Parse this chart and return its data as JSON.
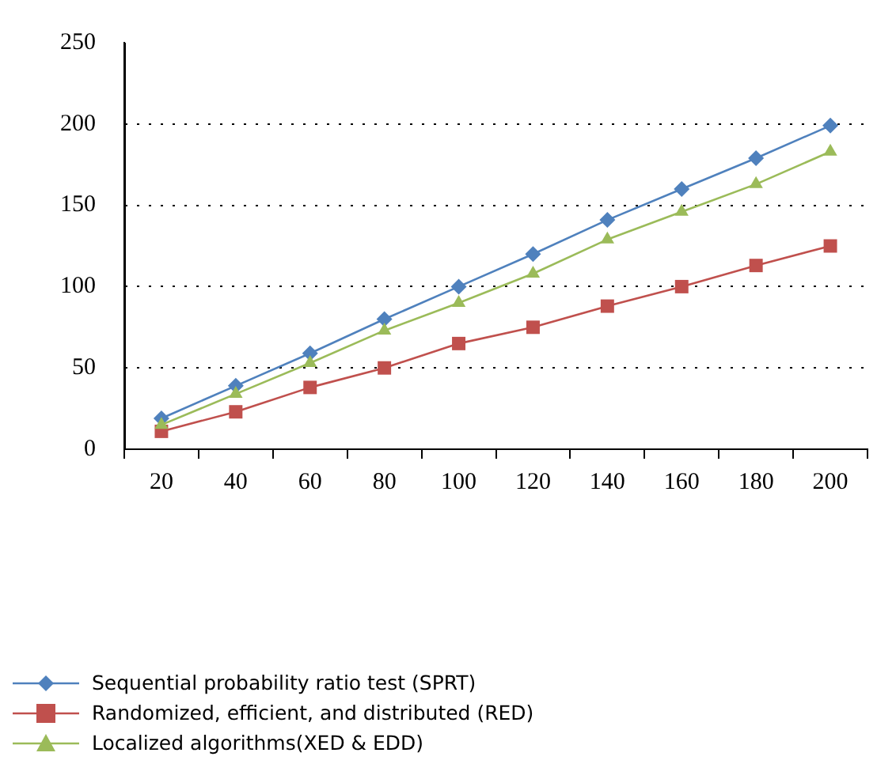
{
  "chart_data": {
    "type": "line",
    "categories": [
      "20",
      "40",
      "60",
      "80",
      "100",
      "120",
      "140",
      "160",
      "180",
      "200"
    ],
    "series": [
      {
        "name": "Sequential probability ratio test (SPRT)",
        "color": "#4f81bd",
        "marker": "diamond",
        "values": [
          19,
          39,
          59,
          80,
          100,
          120,
          141,
          160,
          179,
          199
        ]
      },
      {
        "name": "Randomized, efficient, and distributed (RED)",
        "color": "#c0504d",
        "marker": "square",
        "values": [
          11,
          23,
          38,
          50,
          65,
          75,
          88,
          100,
          113,
          125
        ]
      },
      {
        "name": "Localized algorithms(XED & EDD)",
        "color": "#9bbb59",
        "marker": "triangle",
        "values": [
          15,
          34,
          53,
          73,
          90,
          108,
          129,
          146,
          163,
          183
        ]
      }
    ],
    "ylim": [
      0,
      250
    ],
    "yticks": [
      0,
      50,
      100,
      150,
      200,
      250
    ],
    "grid": "y",
    "legend": "bottom"
  }
}
